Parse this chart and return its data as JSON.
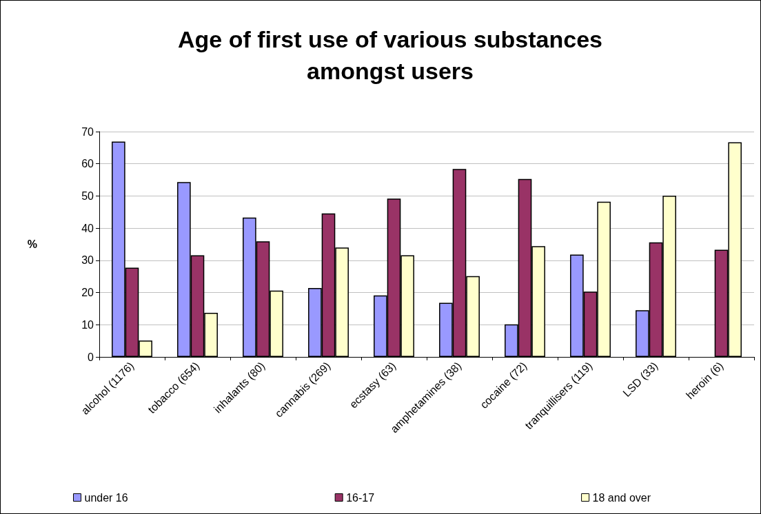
{
  "chart_data": {
    "type": "bar",
    "title": "Age of first use of various substances\namongst users",
    "ylabel": "%",
    "categories": [
      "alcohol (1176)",
      "tobacco (654)",
      "inhalants (80)",
      "cannabis (269)",
      "ecstasy (63)",
      "amphetamines (38)",
      "cocaine (72)",
      "tranquillisers (119)",
      "LSD (33)",
      "heroin (6)"
    ],
    "series": [
      {
        "name": "under 16",
        "color": "#9999ff",
        "values": [
          66.9,
          54.3,
          43.3,
          21.4,
          19.1,
          16.8,
          10.1,
          31.8,
          14.5,
          null
        ]
      },
      {
        "name": "16-17",
        "color": "#993366",
        "values": [
          27.7,
          31.6,
          35.9,
          44.6,
          49.2,
          58.4,
          55.3,
          20.3,
          35.6,
          33.3
        ]
      },
      {
        "name": "18 and over",
        "color": "#ffffcc",
        "values": [
          5.1,
          13.7,
          20.6,
          34.0,
          31.6,
          25.1,
          34.4,
          48.2,
          50.1,
          66.7
        ]
      }
    ],
    "ylim": [
      0,
      70
    ],
    "yticks": [
      0,
      10,
      20,
      30,
      40,
      50,
      60,
      70
    ],
    "grid": "y",
    "legend": "bottom"
  }
}
